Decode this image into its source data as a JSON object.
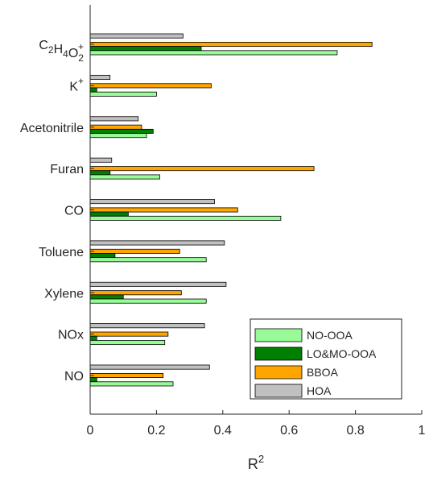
{
  "chart_data": {
    "type": "bar",
    "orientation": "horizontal",
    "categories": [
      {
        "base": "C",
        "parts": [
          [
            "C",
            "2",
            "+0"
          ],
          [
            "H",
            "4",
            ""
          ],
          [
            "O",
            "2",
            ""
          ]
        ],
        "sup": "+",
        "text": "C2H4O2+"
      },
      {
        "text": "K+",
        "base": "K",
        "sup": "+"
      },
      {
        "text": "Acetonitrile"
      },
      {
        "text": "Furan"
      },
      {
        "text": "CO"
      },
      {
        "text": "Toluene"
      },
      {
        "text": "Xylene"
      },
      {
        "text": "NOx"
      },
      {
        "text": "NO"
      }
    ],
    "series": [
      {
        "name": "NO-OOA",
        "color": "#98fb98",
        "values": [
          0.745,
          0.2,
          0.17,
          0.21,
          0.575,
          0.35,
          0.35,
          0.225,
          0.25
        ]
      },
      {
        "name": "LO&MO-OOA",
        "color": "#008000",
        "values": [
          0.335,
          0.02,
          0.19,
          0.06,
          0.115,
          0.075,
          0.1,
          0.02,
          0.02
        ]
      },
      {
        "name": "BBOA",
        "color": "#ffa500",
        "values": [
          0.85,
          0.365,
          0.155,
          0.675,
          0.445,
          0.27,
          0.275,
          0.235,
          0.22
        ]
      },
      {
        "name": "HOA",
        "color": "#c0c0c0",
        "values": [
          0.28,
          0.06,
          0.145,
          0.065,
          0.375,
          0.405,
          0.41,
          0.345,
          0.36
        ]
      }
    ],
    "xlabel": "R",
    "xlabel_sup": "2",
    "xlim": [
      0,
      1
    ],
    "xticks": [
      0,
      0.2,
      0.4,
      0.6,
      0.8,
      1
    ],
    "xtick_labels": [
      "0",
      "0.2",
      "0.4",
      "0.6",
      "0.8",
      "1"
    ],
    "grid": false,
    "legend_position": "bottom-right"
  }
}
